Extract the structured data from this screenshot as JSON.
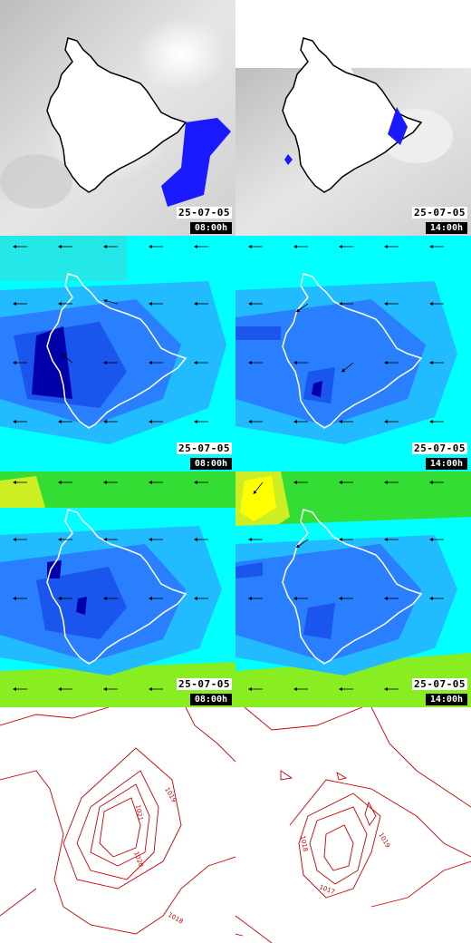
{
  "panels": {
    "clouds": [
      {
        "date": "25-07-05",
        "time": "08:00h"
      },
      {
        "date": "25-07-05",
        "time": "14:00h"
      }
    ],
    "wind_low": [
      {
        "date": "25-07-05",
        "time": "08:00h"
      },
      {
        "date": "25-07-05",
        "time": "14:00h"
      }
    ],
    "wind_mid": [
      {
        "date": "25-07-05",
        "time": "08:00h"
      },
      {
        "date": "25-07-05",
        "time": "14:00h"
      }
    ],
    "pressure": [
      {
        "labels": [
          "1019",
          "1021",
          "1020",
          "1018"
        ]
      },
      {
        "labels": [
          "1019",
          "1018",
          "1017"
        ]
      }
    ]
  },
  "colors": {
    "precip_blue": "#1a1aff",
    "wind_cyan": "#00ffff",
    "wind_dark": "#0000aa",
    "contour_red": "#cc0000",
    "green": "#33dd33",
    "yellow": "#ffff00"
  }
}
